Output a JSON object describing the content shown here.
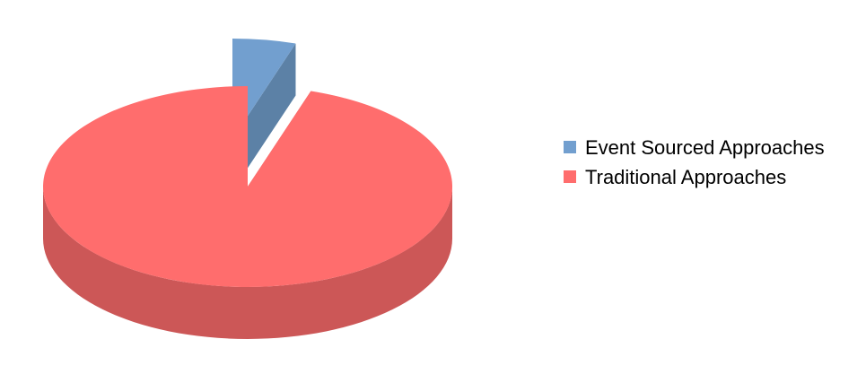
{
  "chart_data": {
    "type": "pie",
    "style": "3d-exploded",
    "title": "",
    "legend_position": "right",
    "series": [
      {
        "name": "Event Sourced Approaches",
        "value": 5,
        "color": "#729fcf",
        "side_color": "#5c81a6",
        "exploded": true
      },
      {
        "name": "Traditional Approaches",
        "value": 95,
        "color": "#ff6d6d",
        "side_color": "#cc5757",
        "exploded": false
      }
    ]
  }
}
